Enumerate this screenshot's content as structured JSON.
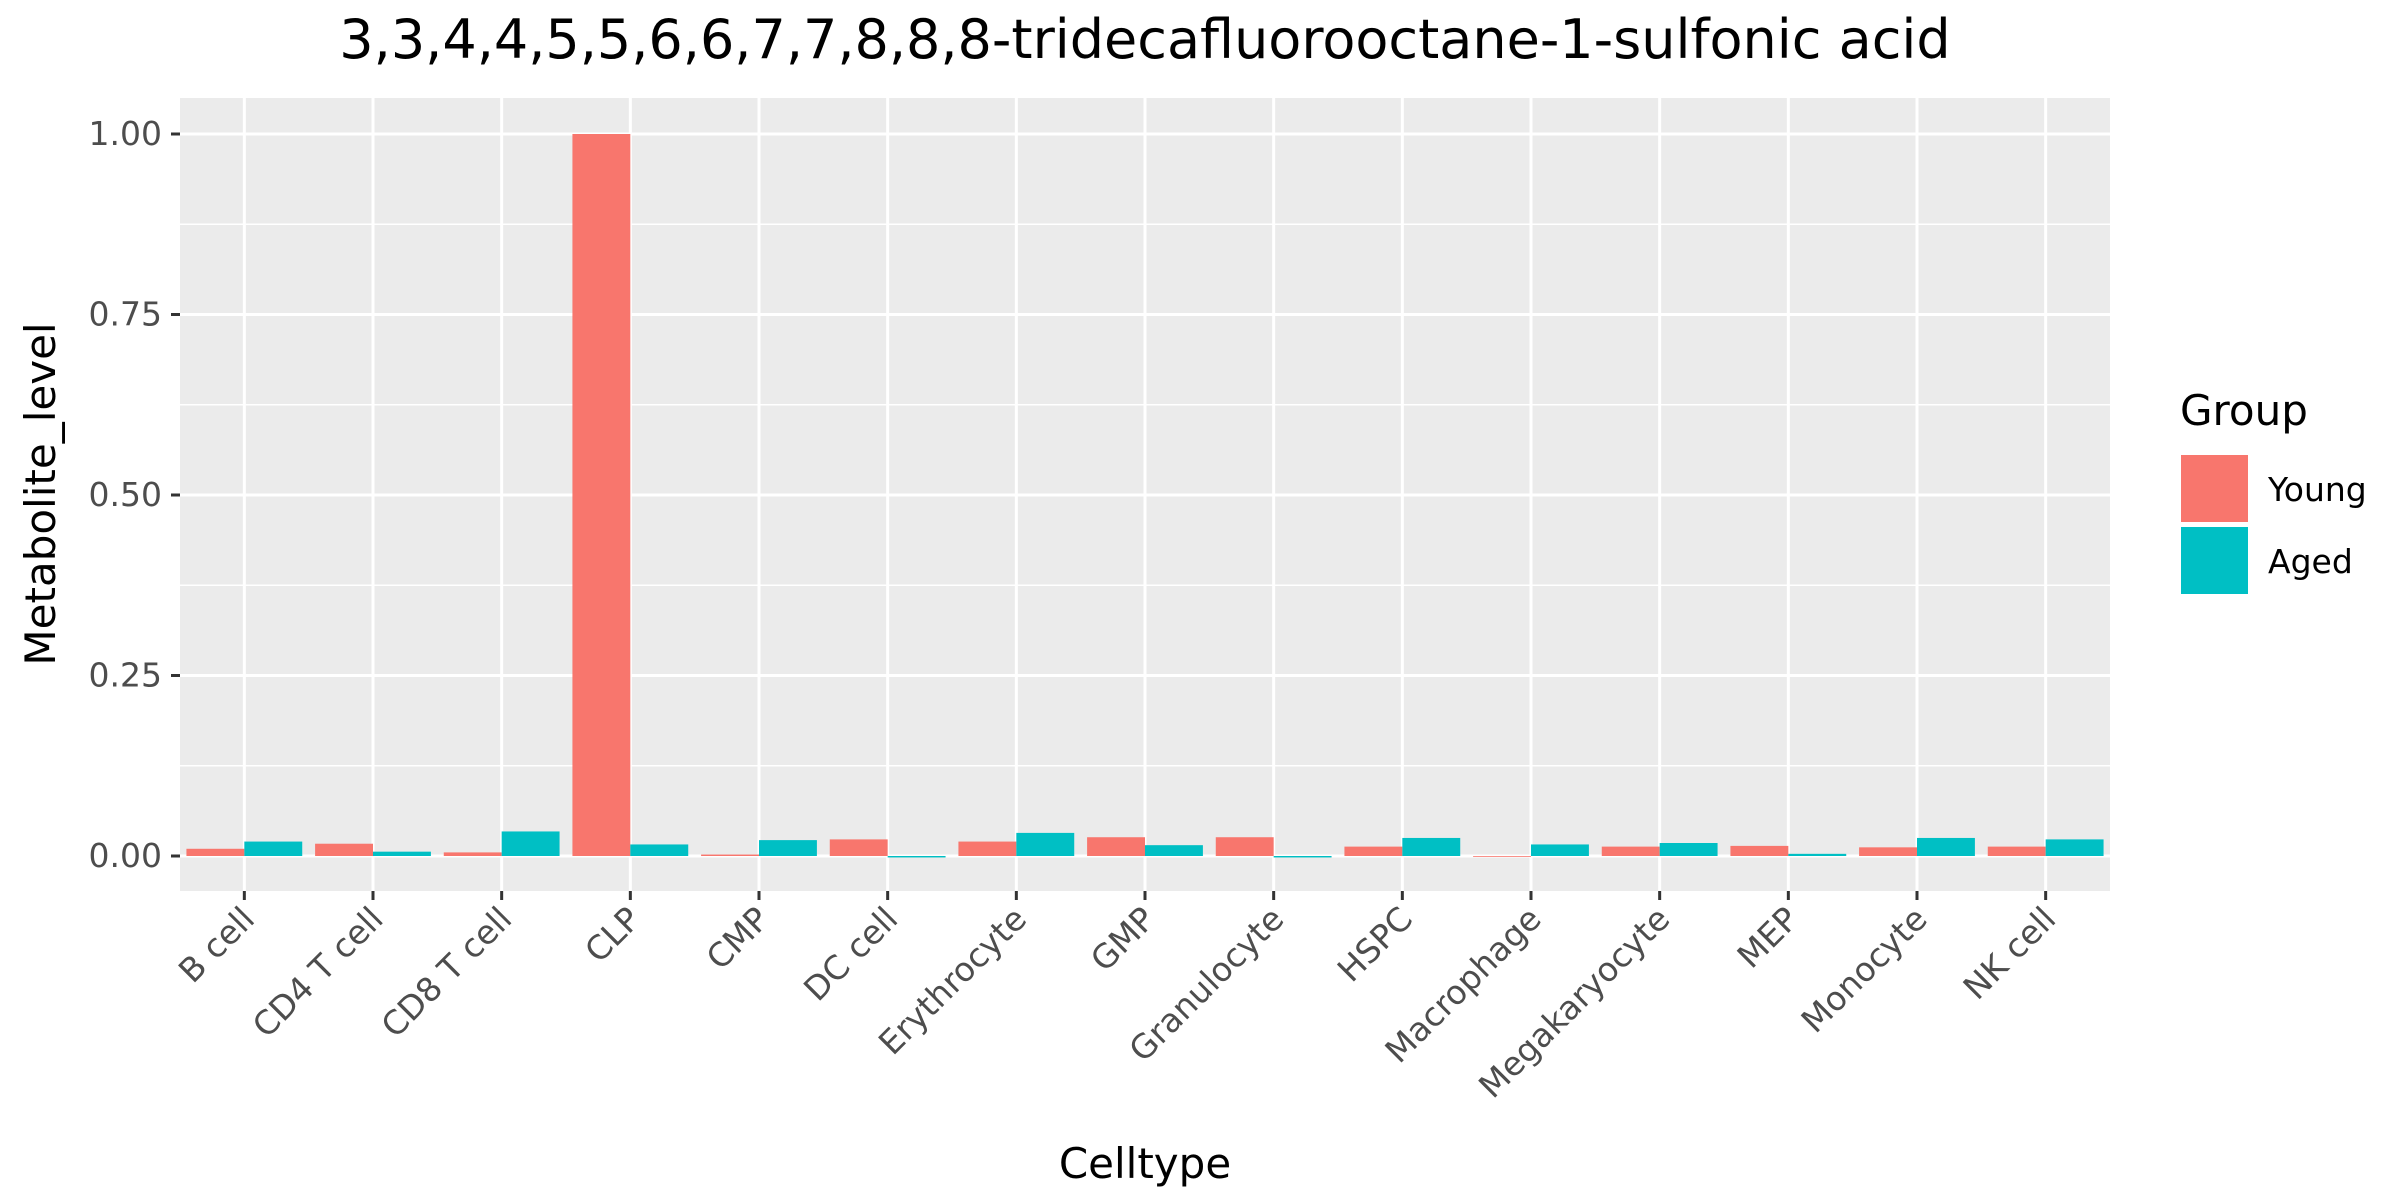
{
  "chart_data": {
    "type": "bar",
    "title": "3,3,4,4,5,5,6,6,7,7,8,8,8-tridecafluorooctane-1-sulfonic acid",
    "xlabel": "Celltype",
    "ylabel": "Metabolite_level",
    "ylim": [
      -0.05,
      1.05
    ],
    "yticks": [
      0.0,
      0.25,
      0.5,
      0.75,
      1.0
    ],
    "ytick_labels": [
      "0.00",
      "0.25",
      "0.50",
      "0.75",
      "1.00"
    ],
    "grid": true,
    "legend": {
      "title": "Group",
      "position": "right"
    },
    "categories": [
      "B cell",
      "CD4 T cell",
      "CD8 T cell",
      "CLP",
      "CMP",
      "DC cell",
      "Erythrocyte",
      "GMP",
      "Granulocyte",
      "HSPC",
      "Macrophage",
      "Megakaryocyte",
      "MEP",
      "Monocyte",
      "NK cell"
    ],
    "series": [
      {
        "name": "Young",
        "color": "#F8766D",
        "values": [
          0.01,
          0.017,
          0.005,
          1.0,
          0.002,
          0.023,
          0.02,
          0.026,
          0.026,
          0.013,
          0.0,
          0.013,
          0.014,
          0.012,
          0.013
        ]
      },
      {
        "name": "Aged",
        "color": "#00BFC4",
        "values": [
          0.02,
          0.006,
          0.034,
          0.016,
          0.022,
          -0.002,
          0.032,
          0.015,
          -0.002,
          0.025,
          0.016,
          0.018,
          0.003,
          0.025,
          0.023
        ]
      }
    ]
  }
}
